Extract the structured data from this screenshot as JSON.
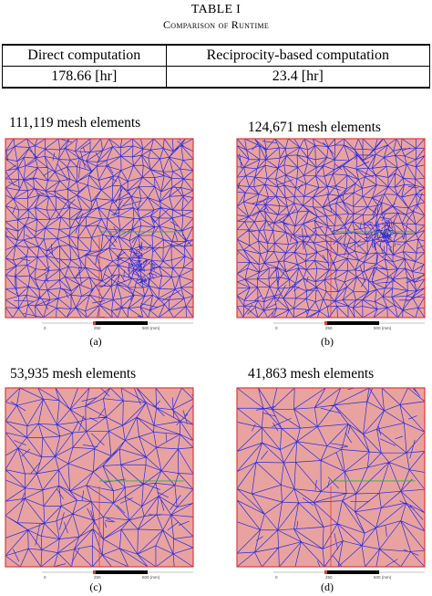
{
  "table": {
    "title": "TABLE I",
    "caption": "Comparison of Runtime",
    "headers": [
      "Direct computation",
      "Reciprocity-based computation"
    ],
    "values": [
      "178.66 [hr]",
      "23.4 [hr]"
    ]
  },
  "panels": [
    {
      "title": "111,119 mesh elements",
      "label": "(a)",
      "scale": [
        "0",
        "250",
        "500 (mm)"
      ]
    },
    {
      "title": "124,671 mesh elements",
      "label": "(b)",
      "scale": [
        "0",
        "250",
        "500 (mm)"
      ]
    },
    {
      "title": "53,935 mesh elements",
      "label": "(c)",
      "scale": [
        "0",
        "250",
        "500 (mm)"
      ]
    },
    {
      "title": "41,863 mesh elements",
      "label": "(d)",
      "scale": [
        "0",
        "250",
        "500 (mm)"
      ]
    }
  ],
  "colors": {
    "mesh_fill": "#e8a3a0",
    "mesh_lines": "#2b2bdc",
    "outline": "#e03a3a",
    "accent_line": "#3fa34a"
  }
}
